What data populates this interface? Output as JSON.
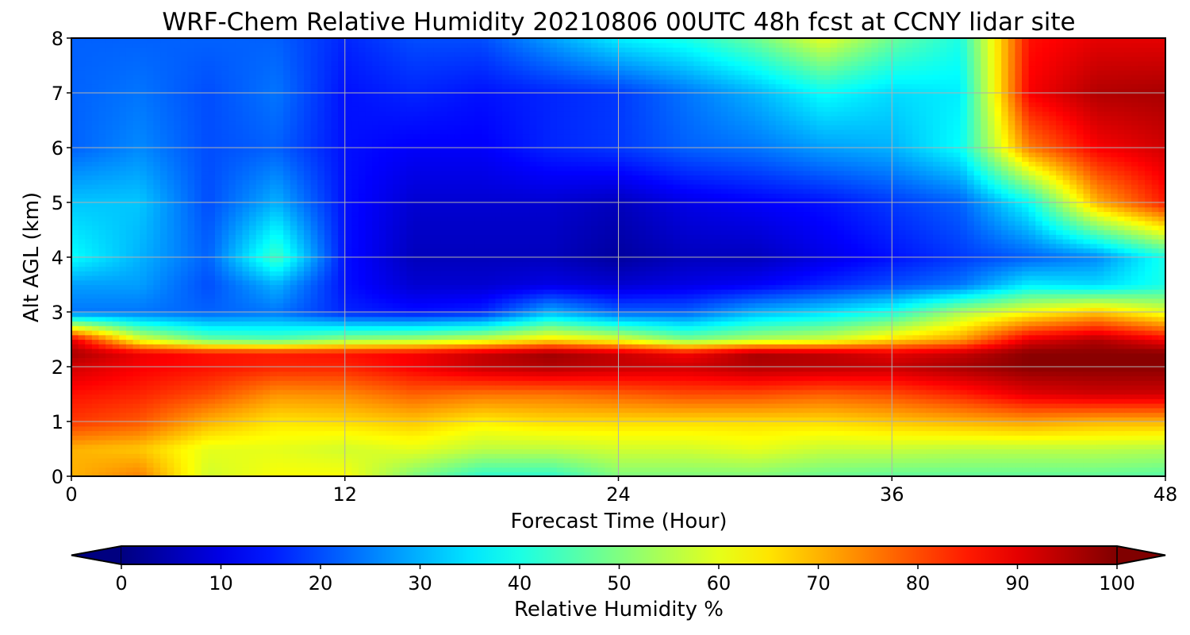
{
  "chart_data": {
    "type": "heatmap",
    "title": "WRF-Chem Relative Humidity 20210806 00UTC 48h fcst at CCNY lidar site",
    "xlabel": "Forecast Time (Hour)",
    "ylabel": "Alt AGL (km)",
    "xlim": [
      0,
      48
    ],
    "ylim": [
      0,
      8
    ],
    "x_ticks": [
      0,
      12,
      24,
      36,
      48
    ],
    "x_tick_labels": [
      "0",
      "12",
      "24",
      "36",
      "48"
    ],
    "y_ticks": [
      0,
      1,
      2,
      3,
      4,
      5,
      6,
      7,
      8
    ],
    "y_tick_labels": [
      "0",
      "1",
      "2",
      "3",
      "4",
      "5",
      "6",
      "7",
      "8"
    ],
    "grid": true,
    "colormap": "jet",
    "colorbar": {
      "label": "Relative Humidity %",
      "range": [
        0,
        100
      ],
      "ticks": [
        0,
        10,
        20,
        30,
        40,
        50,
        60,
        70,
        80,
        90,
        100
      ],
      "tick_labels": [
        "0",
        "10",
        "20",
        "30",
        "40",
        "50",
        "60",
        "70",
        "80",
        "90",
        "100"
      ],
      "extend": "both",
      "orientation": "horizontal"
    },
    "x": [
      0,
      3,
      6,
      9,
      12,
      15,
      18,
      21,
      24,
      27,
      30,
      33,
      36,
      39,
      42,
      45,
      48
    ],
    "y": [
      0,
      0.5,
      1,
      1.5,
      2,
      2.25,
      2.5,
      3,
      3.5,
      4,
      5,
      6,
      7,
      8
    ],
    "z": [
      [
        70,
        75,
        58,
        62,
        62,
        50,
        42,
        42,
        50,
        50,
        50,
        48,
        47,
        47,
        47,
        47,
        46
      ],
      [
        70,
        68,
        60,
        60,
        58,
        60,
        56,
        56,
        58,
        58,
        60,
        57,
        57,
        56,
        56,
        56,
        55
      ],
      [
        82,
        79,
        70,
        65,
        66,
        68,
        64,
        66,
        66,
        66,
        66,
        66,
        68,
        70,
        72,
        70,
        70
      ],
      [
        86,
        84,
        80,
        73,
        74,
        78,
        76,
        76,
        78,
        80,
        80,
        78,
        80,
        84,
        90,
        92,
        92
      ],
      [
        92,
        88,
        86,
        84,
        84,
        88,
        93,
        95,
        93,
        92,
        95,
        94,
        93,
        96,
        99,
        99,
        99
      ],
      [
        96,
        89,
        86,
        85,
        86,
        88,
        93,
        97,
        93,
        88,
        96,
        94,
        90,
        93,
        99,
        99,
        99
      ],
      [
        90,
        60,
        48,
        46,
        52,
        54,
        58,
        65,
        60,
        50,
        55,
        58,
        66,
        72,
        90,
        95,
        88
      ],
      [
        24,
        24,
        22,
        24,
        16,
        14,
        16,
        30,
        22,
        22,
        30,
        34,
        40,
        54,
        62,
        68,
        60
      ],
      [
        28,
        28,
        20,
        30,
        14,
        8,
        8,
        10,
        8,
        10,
        12,
        16,
        20,
        24,
        36,
        34,
        40
      ],
      [
        38,
        30,
        22,
        44,
        14,
        6,
        6,
        6,
        3,
        6,
        6,
        10,
        14,
        18,
        22,
        26,
        40
      ],
      [
        32,
        32,
        20,
        30,
        14,
        8,
        8,
        8,
        6,
        10,
        12,
        14,
        18,
        22,
        38,
        70,
        85
      ],
      [
        22,
        26,
        20,
        22,
        14,
        12,
        12,
        16,
        18,
        22,
        24,
        28,
        30,
        38,
        75,
        88,
        92
      ],
      [
        22,
        24,
        20,
        24,
        14,
        16,
        14,
        16,
        18,
        24,
        30,
        38,
        34,
        36,
        88,
        95,
        96
      ],
      [
        22,
        22,
        22,
        22,
        16,
        20,
        20,
        28,
        36,
        40,
        48,
        60,
        48,
        40,
        86,
        90,
        90
      ]
    ]
  }
}
